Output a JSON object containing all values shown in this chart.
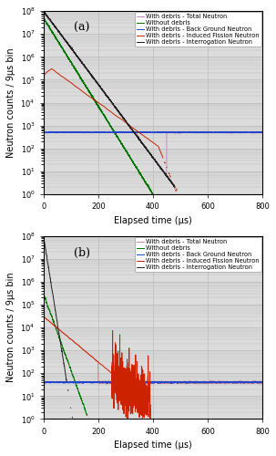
{
  "title_a": "(a)",
  "title_b": "(b)",
  "xlabel": "Elapsed time (μs)",
  "ylabel": "Neutron counts / 9μs bin",
  "xlim": [
    0,
    800
  ],
  "ylim": [
    1.0,
    100000000.0
  ],
  "legend_labels": [
    "With debris - Interrogation Neutron",
    "With debris - Induced Fission Neutron",
    "With debris - Back Ground Neutron",
    "With debris - Total Neutron",
    "Without debris"
  ],
  "colors_a": {
    "interrogation": "#222222",
    "induced": "#cc2200",
    "background": "#2244cc",
    "total": "#cc88cc",
    "without": "#007700"
  },
  "colors_b": {
    "interrogation": "#222222",
    "induced": "#cc2200",
    "background": "#2244cc",
    "total": "#cc8888",
    "without": "#007700"
  },
  "grid_color": "#bbbbbb",
  "background_color": "#dcdcdc",
  "legend_fontsize": 4.8,
  "axis_label_fontsize": 7.0,
  "tick_fontsize": 6.0,
  "panel_label_fontsize": 9.0
}
